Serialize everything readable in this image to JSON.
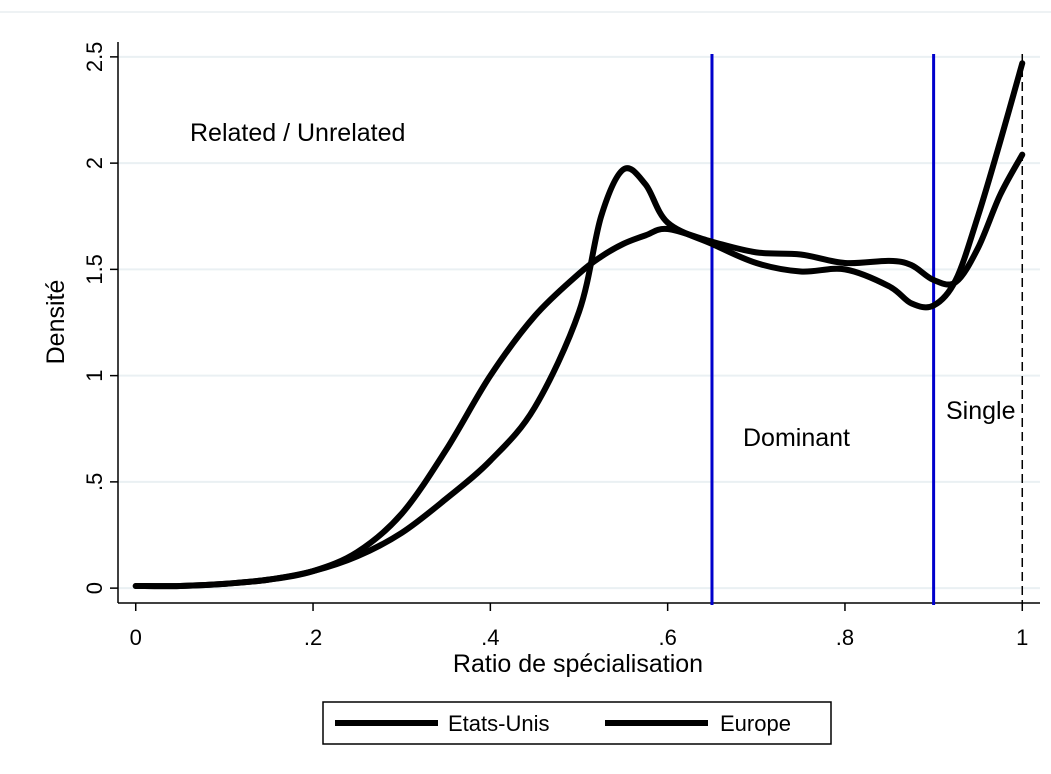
{
  "chart_data": {
    "type": "line",
    "xlabel": "Ratio de spécialisation",
    "ylabel": "Densité",
    "x": [
      0,
      0.05,
      0.1,
      0.15,
      0.2,
      0.25,
      0.3,
      0.35,
      0.4,
      0.45,
      0.5,
      0.525,
      0.55,
      0.575,
      0.6,
      0.65,
      0.7,
      0.75,
      0.8,
      0.85,
      0.875,
      0.9,
      0.925,
      0.95,
      0.975,
      1
    ],
    "series": [
      {
        "name": "Etats-Unis",
        "color": "#000000",
        "values": [
          0.01,
          0.01,
          0.02,
          0.04,
          0.08,
          0.15,
          0.26,
          0.42,
          0.6,
          0.85,
          1.3,
          1.75,
          1.97,
          1.9,
          1.72,
          1.62,
          1.53,
          1.49,
          1.5,
          1.42,
          1.34,
          1.33,
          1.45,
          1.75,
          2.1,
          2.47
        ]
      },
      {
        "name": "Europe",
        "color": "#000000",
        "values": [
          0.01,
          0.01,
          0.02,
          0.04,
          0.08,
          0.17,
          0.35,
          0.65,
          1.0,
          1.28,
          1.48,
          1.56,
          1.62,
          1.66,
          1.69,
          1.63,
          1.58,
          1.57,
          1.53,
          1.54,
          1.52,
          1.45,
          1.44,
          1.6,
          1.85,
          2.04
        ]
      }
    ],
    "xlim": [
      -0.02,
      1.02
    ],
    "ylim": [
      -0.07,
      2.57
    ],
    "xticks": [
      0,
      {
        "value": 0.2,
        "label": ".2"
      },
      {
        "value": 0.4,
        "label": ".4"
      },
      {
        "value": 0.6,
        "label": ".6"
      },
      {
        "value": 0.8,
        "label": ".8"
      },
      1
    ],
    "yticks": [
      0,
      {
        "value": 0.5,
        "label": ".5"
      },
      1,
      1.5,
      2,
      2.5
    ],
    "grid": true,
    "reference_lines": [
      {
        "x": 0.65,
        "color": "#0000cc",
        "style": "solid"
      },
      {
        "x": 0.9,
        "color": "#0000cc",
        "style": "solid"
      },
      {
        "x": 1,
        "color": "#000000",
        "style": "dashed"
      }
    ],
    "annotations": [
      "Related / Unrelated",
      "Dominant",
      "Single"
    ],
    "legend": "bottom"
  }
}
